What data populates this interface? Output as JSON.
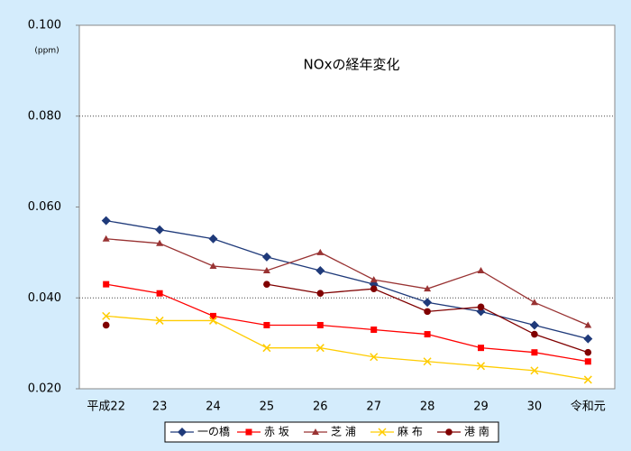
{
  "chart_data": {
    "type": "line",
    "title": "NOxの経年変化",
    "y_unit": "(ppm)",
    "categories": [
      "平成22",
      "23",
      "24",
      "25",
      "26",
      "27",
      "28",
      "29",
      "30",
      "令和元"
    ],
    "series": [
      {
        "name": "一の橋",
        "color": "#1f3a7a",
        "marker": "diamond",
        "values": [
          0.057,
          0.055,
          0.053,
          0.049,
          0.046,
          0.043,
          0.039,
          0.037,
          0.034,
          0.031
        ]
      },
      {
        "name": "赤 坂",
        "color": "#ff0000",
        "marker": "square",
        "values": [
          0.043,
          0.041,
          0.036,
          0.034,
          0.034,
          0.033,
          0.032,
          0.029,
          0.028,
          0.026
        ]
      },
      {
        "name": "芝 浦",
        "color": "#993333",
        "marker": "triangle",
        "values": [
          0.053,
          0.052,
          0.047,
          0.046,
          0.05,
          0.044,
          0.042,
          0.046,
          0.039,
          0.034
        ]
      },
      {
        "name": "麻 布",
        "color": "#ffcc00",
        "marker": "cross",
        "values": [
          0.036,
          0.035,
          0.035,
          0.029,
          0.029,
          0.027,
          0.026,
          0.025,
          0.024,
          0.022
        ]
      },
      {
        "name": "港 南",
        "color": "#800000",
        "marker": "circle",
        "values": [
          0.034,
          null,
          null,
          0.043,
          0.041,
          0.042,
          0.037,
          0.038,
          0.032,
          0.028
        ]
      }
    ],
    "ylim": [
      0.02,
      0.1
    ],
    "yticks": [
      {
        "value": 0.02,
        "label": "0.020"
      },
      {
        "value": 0.04,
        "label": "0.040"
      },
      {
        "value": 0.06,
        "label": "0.060"
      },
      {
        "value": 0.08,
        "label": "0.080"
      },
      {
        "value": 0.1,
        "label": "0.100"
      }
    ],
    "grid_lines": [
      0.04,
      0.08
    ],
    "legend": "bottom"
  }
}
